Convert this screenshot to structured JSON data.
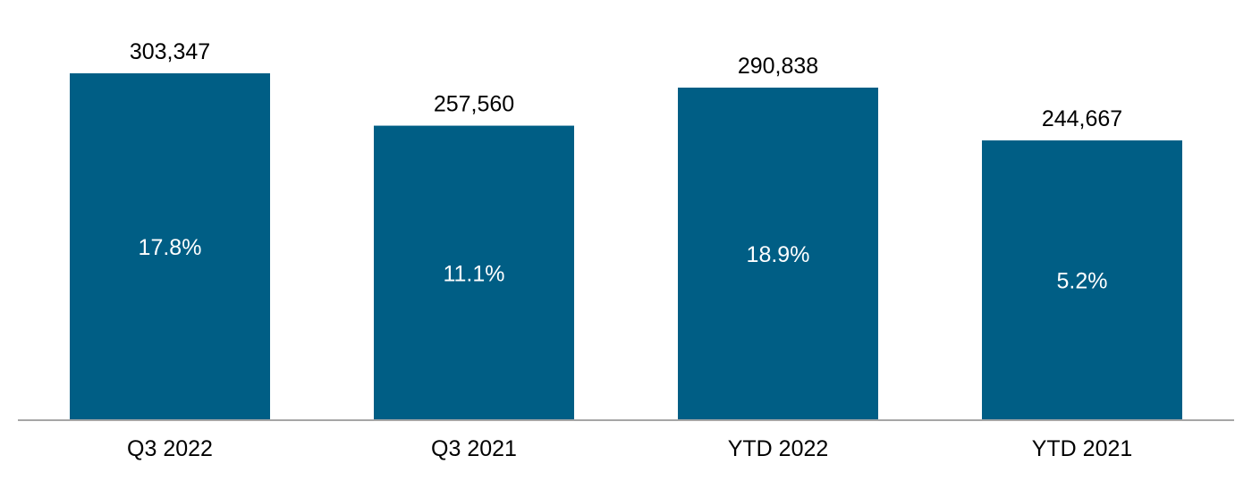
{
  "chart_data": {
    "type": "bar",
    "categories": [
      "Q3 2022",
      "Q3 2021",
      "YTD 2022",
      "YTD 2021"
    ],
    "values": [
      303347,
      257560,
      290838,
      244667
    ],
    "value_labels": [
      "303,347",
      "257,560",
      "290,838",
      "244,667"
    ],
    "inner_labels": [
      "17.8%",
      "11.1%",
      "18.9%",
      "5.2%"
    ],
    "title": "",
    "xlabel": "",
    "ylabel": "",
    "ylim": [
      0,
      303347
    ],
    "grid": false,
    "legend": "none",
    "colors": {
      "bar": "#005E85",
      "axis": "#A6A6A6"
    }
  }
}
